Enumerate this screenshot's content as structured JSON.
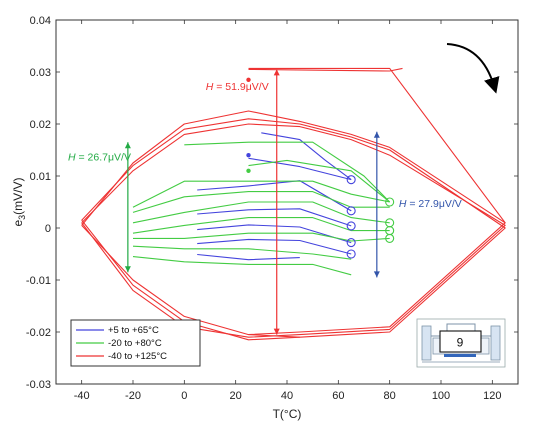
{
  "chart_data": {
    "type": "line",
    "xlabel": "T(°C)",
    "ylabel": "e",
    "ylabel_sub": "3",
    "ylabel_unit": "(mV/V)",
    "xlim": [
      -50,
      130
    ],
    "ylim": [
      -0.03,
      0.04
    ],
    "xticks": [
      -40,
      -20,
      0,
      20,
      40,
      60,
      80,
      100,
      120
    ],
    "xtick_labels": [
      "-40",
      "-20",
      "0",
      "20",
      "40",
      "60",
      "80",
      "100",
      "120"
    ],
    "yticks": [
      -0.03,
      -0.02,
      -0.01,
      0,
      0.01,
      0.02,
      0.03,
      0.04
    ],
    "ytick_labels": [
      "-0.03",
      "-0.02",
      "-0.01",
      "0",
      "0.01",
      "0.02",
      "0.03",
      "0.04"
    ],
    "legend_position": "bottom-left",
    "series": [
      {
        "name": "+5 to +65°C",
        "color": "#4444dd",
        "lines": [
          [
            [
              5,
              0.0073
            ],
            [
              25,
              0.0081
            ],
            [
              45,
              0.0091
            ],
            [
              65,
              0.0033
            ]
          ],
          [
            [
              25,
              0.0134
            ],
            [
              45,
              0.0118
            ],
            [
              65,
              0.0093
            ]
          ],
          [
            [
              5,
              0.0027
            ],
            [
              25,
              0.0035
            ],
            [
              45,
              0.0037
            ],
            [
              65,
              0.0004
            ]
          ],
          [
            [
              5,
              -0.0003
            ],
            [
              25,
              0.0006
            ],
            [
              45,
              0.0002
            ],
            [
              65,
              -0.0028
            ]
          ],
          [
            [
              5,
              -0.003
            ],
            [
              25,
              -0.0022
            ],
            [
              45,
              -0.0024
            ],
            [
              65,
              -0.005
            ]
          ],
          [
            [
              5,
              -0.0051
            ],
            [
              25,
              -0.0061
            ],
            [
              45,
              -0.0057
            ]
          ],
          [
            [
              30,
              0.0183
            ],
            [
              45,
              0.017
            ],
            [
              55,
              0.013
            ],
            [
              65,
              0.0093
            ]
          ],
          [
            [
              45,
              0.0091
            ],
            [
              55,
              0.0062
            ],
            [
              65,
              0.0033
            ]
          ]
        ],
        "end_markers": [
          [
            65,
            0.0093
          ],
          [
            65,
            0.0033
          ],
          [
            65,
            0.0004
          ],
          [
            65,
            -0.0028
          ],
          [
            65,
            -0.005
          ]
        ],
        "start_marker": [
          25,
          0.014
        ]
      },
      {
        "name": "-20 to +80°C",
        "color": "#44cc44",
        "lines": [
          [
            [
              -20,
              0.004
            ],
            [
              0,
              0.009
            ],
            [
              25,
              0.009
            ],
            [
              50,
              0.009
            ],
            [
              65,
              0.0065
            ],
            [
              80,
              0.005
            ]
          ],
          [
            [
              -20,
              0.003
            ],
            [
              0,
              0.006
            ],
            [
              25,
              0.007
            ],
            [
              50,
              0.007
            ],
            [
              65,
              0.004
            ],
            [
              80,
              0.004
            ]
          ],
          [
            [
              -20,
              0.001
            ],
            [
              0,
              0.003
            ],
            [
              25,
              0.005
            ],
            [
              50,
              0.005
            ],
            [
              65,
              0.002
            ],
            [
              80,
              0.001
            ]
          ],
          [
            [
              -20,
              -0.001
            ],
            [
              0,
              0.0005
            ],
            [
              25,
              0.002
            ],
            [
              50,
              0.002
            ],
            [
              65,
              -0.0005
            ],
            [
              80,
              -0.0005
            ]
          ],
          [
            [
              -20,
              -0.002
            ],
            [
              0,
              -0.002
            ],
            [
              25,
              -0.001
            ],
            [
              50,
              -0.001
            ],
            [
              65,
              -0.0025
            ],
            [
              80,
              -0.002
            ]
          ],
          [
            [
              -20,
              -0.0035
            ],
            [
              0,
              -0.004
            ],
            [
              25,
              -0.004
            ],
            [
              50,
              -0.005
            ],
            [
              65,
              -0.006
            ]
          ],
          [
            [
              -20,
              -0.0055
            ],
            [
              0,
              -0.0065
            ],
            [
              25,
              -0.007
            ],
            [
              50,
              -0.007
            ],
            [
              65,
              -0.009
            ]
          ],
          [
            [
              25,
              0.012
            ],
            [
              40,
              0.013
            ],
            [
              65,
              0.011
            ],
            [
              80,
              0.005
            ]
          ],
          [
            [
              0,
              0.016
            ],
            [
              25,
              0.0165
            ],
            [
              50,
              0.0165
            ],
            [
              70,
              0.01
            ],
            [
              80,
              0.005
            ]
          ]
        ],
        "end_markers": [
          [
            80,
            0.005
          ],
          [
            80,
            0.001
          ],
          [
            80,
            -0.0005
          ],
          [
            80,
            -0.002
          ]
        ],
        "start_marker": [
          25,
          0.011
        ]
      },
      {
        "name": "-40 to +125°C",
        "color": "#ee3333",
        "lines": [
          [
            [
              -40,
              0.001
            ],
            [
              -20,
              0.011
            ],
            [
              0,
              0.018
            ],
            [
              25,
              0.02
            ],
            [
              45,
              0.0195
            ],
            [
              65,
              0.017
            ],
            [
              80,
              0.014
            ],
            [
              125,
              0.0005
            ],
            [
              80,
              -0.0195
            ],
            [
              45,
              -0.0205
            ],
            [
              25,
              -0.021
            ],
            [
              0,
              -0.019
            ],
            [
              -20,
              -0.012
            ],
            [
              -40,
              0.001
            ]
          ],
          [
            [
              -40,
              0.0015
            ],
            [
              -20,
              0.012
            ],
            [
              0,
              0.019
            ],
            [
              25,
              0.021
            ],
            [
              45,
              0.02
            ],
            [
              65,
              0.0175
            ],
            [
              80,
              0.015
            ],
            [
              125,
              0.0
            ],
            [
              80,
              -0.02
            ],
            [
              45,
              -0.021
            ],
            [
              25,
              -0.0215
            ],
            [
              0,
              -0.018
            ],
            [
              -20,
              -0.011
            ],
            [
              -40,
              0.0015
            ]
          ],
          [
            [
              -40,
              0.0005
            ],
            [
              -20,
              0.0125
            ],
            [
              0,
              0.02
            ],
            [
              25,
              0.0225
            ],
            [
              45,
              0.0205
            ],
            [
              65,
              0.018
            ],
            [
              80,
              0.0155
            ],
            [
              125,
              0.001
            ],
            [
              80,
              -0.019
            ],
            [
              45,
              -0.02
            ],
            [
              25,
              -0.0205
            ],
            [
              0,
              -0.017
            ],
            [
              -20,
              -0.01
            ],
            [
              -40,
              0.0005
            ]
          ],
          [
            [
              25,
              0.0307
            ],
            [
              80,
              0.0307
            ],
            [
              125,
              0.001
            ]
          ],
          [
            [
              25,
              0.0305
            ],
            [
              80,
              0.0302
            ],
            [
              85,
              0.0307
            ]
          ],
          [
            [
              25,
              -0.0205
            ],
            [
              45,
              -0.021
            ]
          ]
        ],
        "start_marker": [
          25,
          0.0285
        ]
      }
    ],
    "annotations": [
      {
        "label": "H",
        "text": " = 51.9μV/V",
        "color": "#ee3333",
        "x": 36,
        "y1": -0.0205,
        "y2": 0.0305
      },
      {
        "label": "H",
        "text": " = 26.7μV/V",
        "color": "#22aa44",
        "x": -22,
        "y1": -0.0085,
        "y2": 0.0165
      },
      {
        "label": "H",
        "text": " = 27.9μV/V",
        "color": "#3355aa",
        "x": 75,
        "y1": -0.0095,
        "y2": 0.0185
      }
    ],
    "inset_label": "9"
  }
}
